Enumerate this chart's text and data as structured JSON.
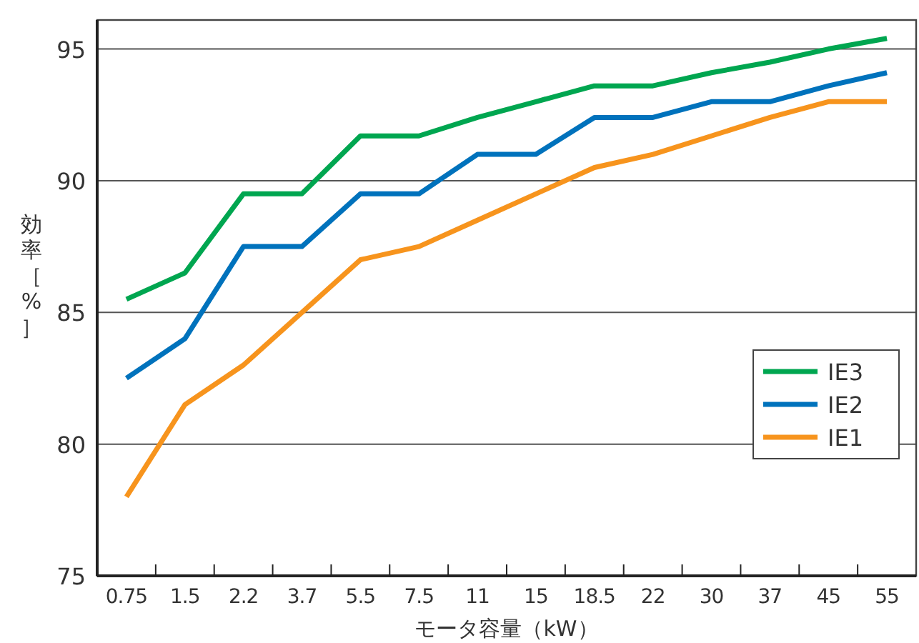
{
  "chart_data": {
    "type": "line",
    "ylabel": "効率［%］",
    "xlabel": "モータ容量（kW）",
    "categories": [
      "0.75",
      "1.5",
      "2.2",
      "3.7",
      "5.5",
      "7.5",
      "11",
      "15",
      "18.5",
      "22",
      "30",
      "37",
      "45",
      "55"
    ],
    "series": [
      {
        "name": "IE3",
        "color": "#00a650",
        "values": [
          85.5,
          86.5,
          89.5,
          89.5,
          91.7,
          91.7,
          92.4,
          93.0,
          93.6,
          93.6,
          94.1,
          94.5,
          95.0,
          95.4
        ]
      },
      {
        "name": "IE2",
        "color": "#0072bc",
        "values": [
          82.5,
          84.0,
          87.5,
          87.5,
          89.5,
          89.5,
          91.0,
          91.0,
          92.4,
          92.4,
          93.0,
          93.0,
          93.6,
          94.1
        ]
      },
      {
        "name": "IE1",
        "color": "#f7941d",
        "values": [
          78.0,
          81.5,
          83.0,
          85.0,
          87.0,
          87.5,
          88.5,
          89.5,
          90.5,
          91.0,
          91.7,
          92.4,
          93.0,
          93.0
        ]
      }
    ],
    "ylim": [
      75,
      96.1
    ],
    "yticks": [
      75,
      80,
      85,
      90,
      95
    ],
    "grid": "y",
    "legend": "right",
    "marker": "none",
    "line_style": "solid"
  }
}
